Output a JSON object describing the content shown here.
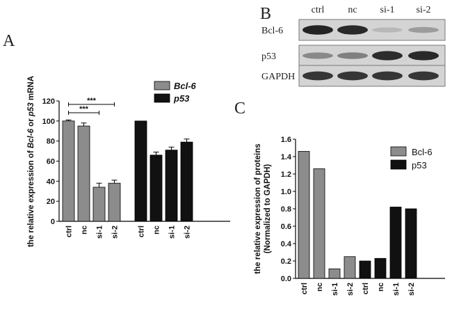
{
  "panels": {
    "a": "A",
    "b": "B",
    "c": "C"
  },
  "colors": {
    "bcl6": "#8c8c8c",
    "p53": "#111111",
    "blot_bg": "#d4d4d4",
    "band": "#1a1a1a"
  },
  "western_blot": {
    "lanes": [
      "ctrl",
      "nc",
      "si-1",
      "si-2"
    ],
    "rows": [
      {
        "label": "Bcl-6",
        "intensity": [
          0.95,
          0.92,
          0.15,
          0.3
        ]
      },
      {
        "label": "p53",
        "intensity": [
          0.4,
          0.45,
          0.9,
          0.92
        ]
      },
      {
        "label": "GAPDH",
        "intensity": [
          0.85,
          0.85,
          0.85,
          0.85
        ]
      }
    ]
  },
  "chart_data": [
    {
      "type": "bar",
      "panel": "A",
      "ylabel_parts": [
        "the relative expression of ",
        "Bcl-6",
        " or ",
        "p53",
        " mRNA"
      ],
      "ylim": [
        0,
        120
      ],
      "yticks": [
        "0",
        "20",
        "40",
        "60",
        "80",
        "100",
        "120"
      ],
      "series": [
        {
          "name": "Bcl-6",
          "categories": [
            "ctrl",
            "nc",
            "si-1",
            "si-2"
          ],
          "values": [
            100,
            95,
            34,
            38
          ],
          "errors": [
            1,
            3,
            4,
            3
          ]
        },
        {
          "name": "p53",
          "categories": [
            "ctrl",
            "nc",
            "si-1",
            "si-2"
          ],
          "values": [
            100,
            66,
            71,
            79
          ],
          "errors": [
            0,
            3,
            3,
            3
          ]
        }
      ],
      "significance": [
        {
          "label": "***",
          "from": "ctrl",
          "to": "si-2"
        },
        {
          "label": "***",
          "from": "ctrl",
          "to": "si-1"
        }
      ],
      "legend": [
        "Bcl-6",
        "p53"
      ]
    },
    {
      "type": "bar",
      "panel": "C",
      "ylabel_lines": [
        "the relative expression of  proteins",
        "(Normalized to GAPDH)"
      ],
      "ylim": [
        0,
        1.6
      ],
      "yticks": [
        "0.0",
        "0.2",
        "0.4",
        "0.6",
        "0.8",
        "1.0",
        "1.2",
        "1.4",
        "1.6"
      ],
      "series": [
        {
          "name": "Bcl-6",
          "categories": [
            "ctrl",
            "nc",
            "si-1",
            "si-2"
          ],
          "values": [
            1.46,
            1.26,
            0.11,
            0.25
          ]
        },
        {
          "name": "p53",
          "categories": [
            "ctrl",
            "nc",
            "si-1",
            "si-2"
          ],
          "values": [
            0.2,
            0.23,
            0.82,
            0.8
          ]
        }
      ],
      "legend": [
        "Bcl-6",
        "p53"
      ]
    }
  ]
}
